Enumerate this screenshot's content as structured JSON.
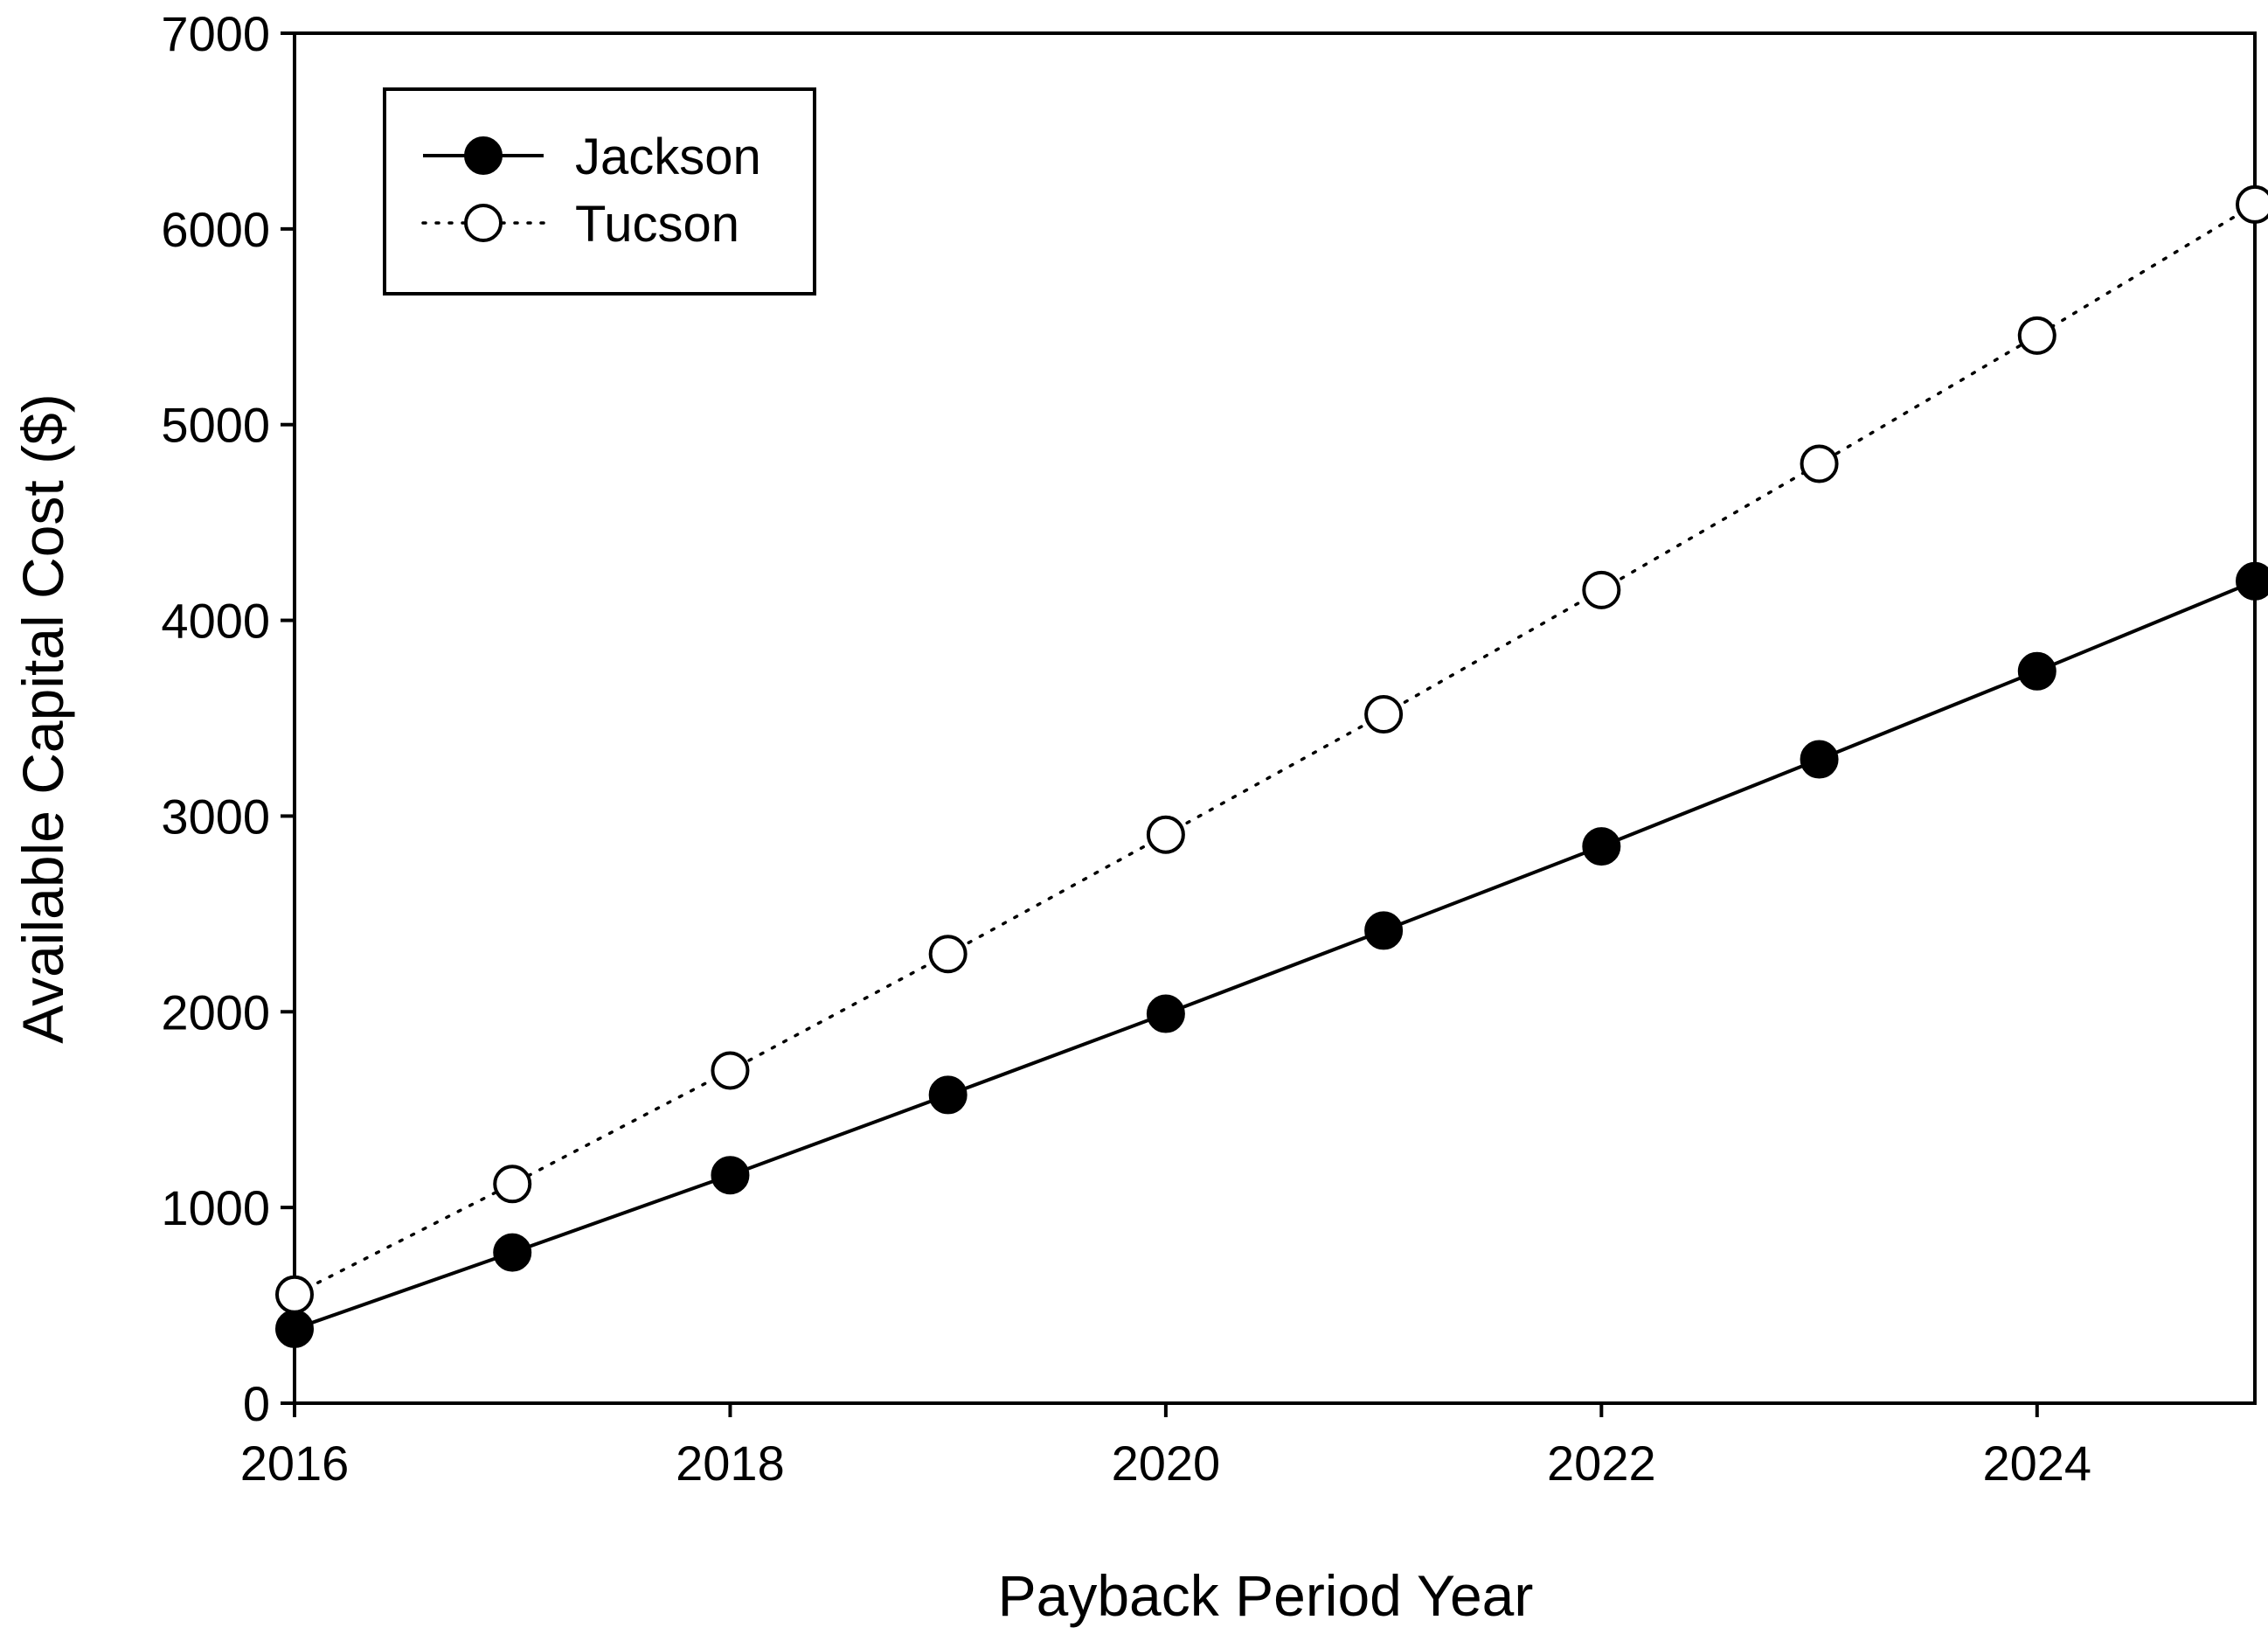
{
  "chart_data": {
    "type": "line",
    "title": "",
    "xlabel": "Payback Period Year",
    "ylabel": "Available Capital Cost ($)",
    "xlim": [
      2016,
      2025
    ],
    "ylim": [
      0,
      7000
    ],
    "xticks": [
      2016,
      2018,
      2020,
      2022,
      2024
    ],
    "yticks": [
      0,
      1000,
      2000,
      3000,
      4000,
      5000,
      6000,
      7000
    ],
    "grid": false,
    "legend_position": "top-left",
    "x": [
      2016,
      2017,
      2018,
      2019,
      2020,
      2021,
      2022,
      2023,
      2024,
      2025
    ],
    "series": [
      {
        "name": "Jackson",
        "values": [
          380,
          770,
          1165,
          1575,
          1990,
          2415,
          2845,
          3290,
          3740,
          4200
        ],
        "line_style": "solid",
        "marker": "filled-circle",
        "color": "#000000"
      },
      {
        "name": "Tucson",
        "values": [
          555,
          1120,
          1700,
          2295,
          2905,
          3520,
          4155,
          4800,
          5455,
          6125
        ],
        "line_style": "dotted",
        "marker": "open-circle",
        "color": "#000000"
      }
    ]
  }
}
